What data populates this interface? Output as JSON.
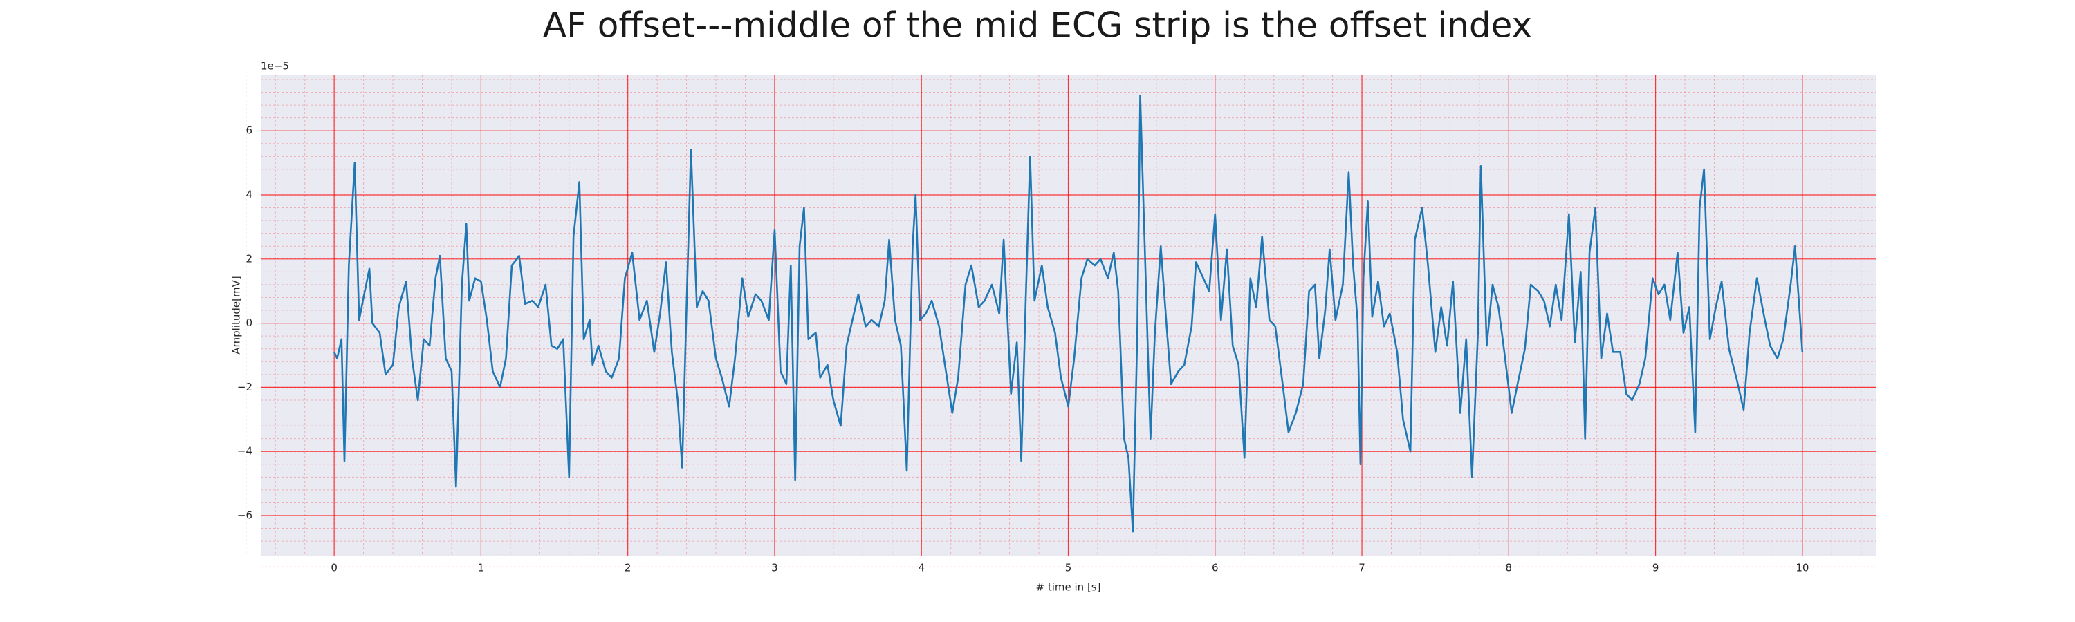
{
  "chart_data": {
    "type": "line",
    "title": "AF offset---middle of the mid ECG strip is the offset index",
    "xlabel": "# time in [s]",
    "ylabel": "Amplitude[mV]",
    "y_offset_label": "1e−5",
    "color": "#1f77b4",
    "grid": true,
    "grid_color": "#ff0000",
    "minor_grid": true,
    "background": "#eaeaf2",
    "xlim": [
      -0.5,
      10.5
    ],
    "ylim": [
      -7.25,
      7.75
    ],
    "xticks": [
      0,
      1,
      2,
      3,
      4,
      5,
      6,
      7,
      8,
      9,
      10
    ],
    "yticks": [
      {
        "value": -6,
        "label": "−6"
      },
      {
        "value": -4,
        "label": "−4"
      },
      {
        "value": -2,
        "label": "−2"
      },
      0,
      2,
      4,
      6
    ],
    "x": [
      0,
      0.02,
      0.05,
      0.07,
      0.1,
      0.14,
      0.17,
      0.2,
      0.24,
      0.26,
      0.31,
      0.35,
      0.4,
      0.44,
      0.49,
      0.53,
      0.57,
      0.61,
      0.65,
      0.69,
      0.72,
      0.76,
      0.8,
      0.83,
      0.87,
      0.9,
      0.92,
      0.96,
      1.0,
      1.04,
      1.08,
      1.13,
      1.17,
      1.21,
      1.26,
      1.3,
      1.35,
      1.39,
      1.44,
      1.48,
      1.52,
      1.56,
      1.6,
      1.63,
      1.67,
      1.7,
      1.74,
      1.76,
      1.8,
      1.85,
      1.89,
      1.94,
      1.98,
      2.03,
      2.08,
      2.13,
      2.18,
      2.22,
      2.26,
      2.3,
      2.34,
      2.37,
      2.4,
      2.43,
      2.47,
      2.51,
      2.55,
      2.6,
      2.64,
      2.69,
      2.73,
      2.78,
      2.82,
      2.87,
      2.91,
      2.96,
      3.0,
      3.04,
      3.08,
      3.11,
      3.14,
      3.17,
      3.2,
      3.23,
      3.28,
      3.31,
      3.36,
      3.4,
      3.45,
      3.49,
      3.53,
      3.57,
      3.62,
      3.66,
      3.71,
      3.75,
      3.78,
      3.82,
      3.86,
      3.9,
      3.94,
      3.96,
      3.99,
      4.03,
      4.07,
      4.12,
      4.16,
      4.21,
      4.25,
      4.3,
      4.34,
      4.39,
      4.43,
      4.48,
      4.53,
      4.56,
      4.61,
      4.65,
      4.68,
      4.71,
      4.74,
      4.77,
      4.82,
      4.86,
      4.91,
      4.95,
      5.0,
      5.04,
      5.09,
      5.13,
      5.18,
      5.22,
      5.27,
      5.31,
      5.34,
      5.38,
      5.41,
      5.44,
      5.47,
      5.49,
      5.53,
      5.56,
      5.59,
      5.63,
      5.67,
      5.7,
      5.75,
      5.79,
      5.84,
      5.87,
      5.92,
      5.96,
      6.0,
      6.04,
      6.08,
      6.12,
      6.16,
      6.2,
      6.24,
      6.28,
      6.32,
      6.37,
      6.41,
      6.46,
      6.5,
      6.55,
      6.6,
      6.64,
      6.68,
      6.71,
      6.75,
      6.78,
      6.82,
      6.87,
      6.91,
      6.94,
      6.97,
      6.99,
      7.01,
      7.04,
      7.07,
      7.11,
      7.15,
      7.19,
      7.24,
      7.28,
      7.33,
      7.36,
      7.41,
      7.45,
      7.5,
      7.54,
      7.58,
      7.62,
      7.67,
      7.71,
      7.75,
      7.79,
      7.81,
      7.85,
      7.89,
      7.93,
      7.97,
      8.02,
      8.06,
      8.11,
      8.15,
      8.2,
      8.24,
      8.28,
      8.32,
      8.36,
      8.41,
      8.45,
      8.49,
      8.52,
      8.55,
      8.59,
      8.63,
      8.67,
      8.71,
      8.76,
      8.8,
      8.84,
      8.89,
      8.93,
      8.98,
      9.02,
      9.06,
      9.1,
      9.15,
      9.19,
      9.23,
      9.27,
      9.3,
      9.33,
      9.37,
      9.41,
      9.45,
      9.5,
      9.55,
      9.6,
      9.64,
      9.69,
      9.74,
      9.78,
      9.83,
      9.87,
      9.92,
      9.95,
      10.0
    ],
    "values": [
      -0.9,
      -1.1,
      -0.5,
      -4.3,
      1.8,
      5.0,
      0.1,
      0.8,
      1.7,
      0,
      -0.3,
      -1.6,
      -1.3,
      0.5,
      1.3,
      -1.1,
      -2.4,
      -0.5,
      -0.7,
      1.4,
      2.1,
      -1.1,
      -1.5,
      -5.1,
      1.2,
      3.1,
      0.7,
      1.4,
      1.3,
      0.1,
      -1.5,
      -2.0,
      -1.1,
      1.8,
      2.1,
      0.6,
      0.7,
      0.5,
      1.2,
      -0.7,
      -0.8,
      -0.5,
      -4.8,
      2.7,
      4.4,
      -0.5,
      0.1,
      -1.3,
      -0.7,
      -1.5,
      -1.7,
      -1.1,
      1.4,
      2.2,
      0.1,
      0.7,
      -0.9,
      0.3,
      1.9,
      -0.9,
      -2.4,
      -4.5,
      0.5,
      5.4,
      0.5,
      1.0,
      0.7,
      -1.1,
      -1.7,
      -2.6,
      -1.1,
      1.4,
      0.2,
      0.9,
      0.7,
      0.1,
      2.9,
      -1.5,
      -1.9,
      1.8,
      -4.9,
      2.4,
      3.6,
      -0.5,
      -0.3,
      -1.7,
      -1.3,
      -2.4,
      -3.2,
      -0.7,
      0.1,
      0.9,
      -0.1,
      0.1,
      -0.1,
      0.7,
      2.6,
      0.1,
      -0.7,
      -4.6,
      2.4,
      4.0,
      0.1,
      0.3,
      0.7,
      -0.1,
      -1.3,
      -2.8,
      -1.7,
      1.2,
      1.8,
      0.5,
      0.7,
      1.2,
      0.3,
      2.6,
      -2.2,
      -0.6,
      -4.3,
      0.7,
      5.2,
      0.7,
      1.8,
      0.5,
      -0.3,
      -1.7,
      -2.6,
      -1.1,
      1.4,
      2.0,
      1.8,
      2.0,
      1.4,
      2.2,
      1.0,
      -3.6,
      -4.2,
      -6.5,
      -0.3,
      7.1,
      1.0,
      -3.6,
      -0.3,
      2.4,
      -0.1,
      -1.9,
      -1.5,
      -1.3,
      -0.1,
      1.9,
      1.4,
      1.0,
      3.4,
      0.1,
      2.3,
      -0.7,
      -1.3,
      -4.2,
      1.4,
      0.5,
      2.7,
      0.1,
      -0.1,
      -1.9,
      -3.4,
      -2.8,
      -1.9,
      1.0,
      1.2,
      -1.1,
      0.4,
      2.3,
      0.1,
      1.2,
      4.7,
      1.8,
      0.1,
      -4.4,
      1.4,
      3.8,
      0.2,
      1.3,
      -0.1,
      0.3,
      -0.9,
      -3.0,
      -4.0,
      2.6,
      3.6,
      1.8,
      -0.9,
      0.5,
      -0.7,
      1.3,
      -2.8,
      -0.5,
      -4.8,
      -0.3,
      4.9,
      -0.7,
      1.2,
      0.5,
      -0.9,
      -2.8,
      -1.9,
      -0.8,
      1.2,
      1.0,
      0.7,
      -0.1,
      1.2,
      0.1,
      3.4,
      -0.6,
      1.6,
      -3.6,
      2.2,
      3.6,
      -1.1,
      0.3,
      -0.9,
      -0.9,
      -2.2,
      -2.4,
      -1.9,
      -1.1,
      1.4,
      0.9,
      1.2,
      0.1,
      2.2,
      -0.3,
      0.5,
      -3.4,
      3.6,
      4.8,
      -0.5,
      0.5,
      1.3,
      -0.8,
      -1.7,
      -2.7,
      -0.3,
      1.4,
      0.2,
      -0.7,
      -1.1,
      -0.5,
      1.2,
      2.4,
      -0.9
    ]
  }
}
